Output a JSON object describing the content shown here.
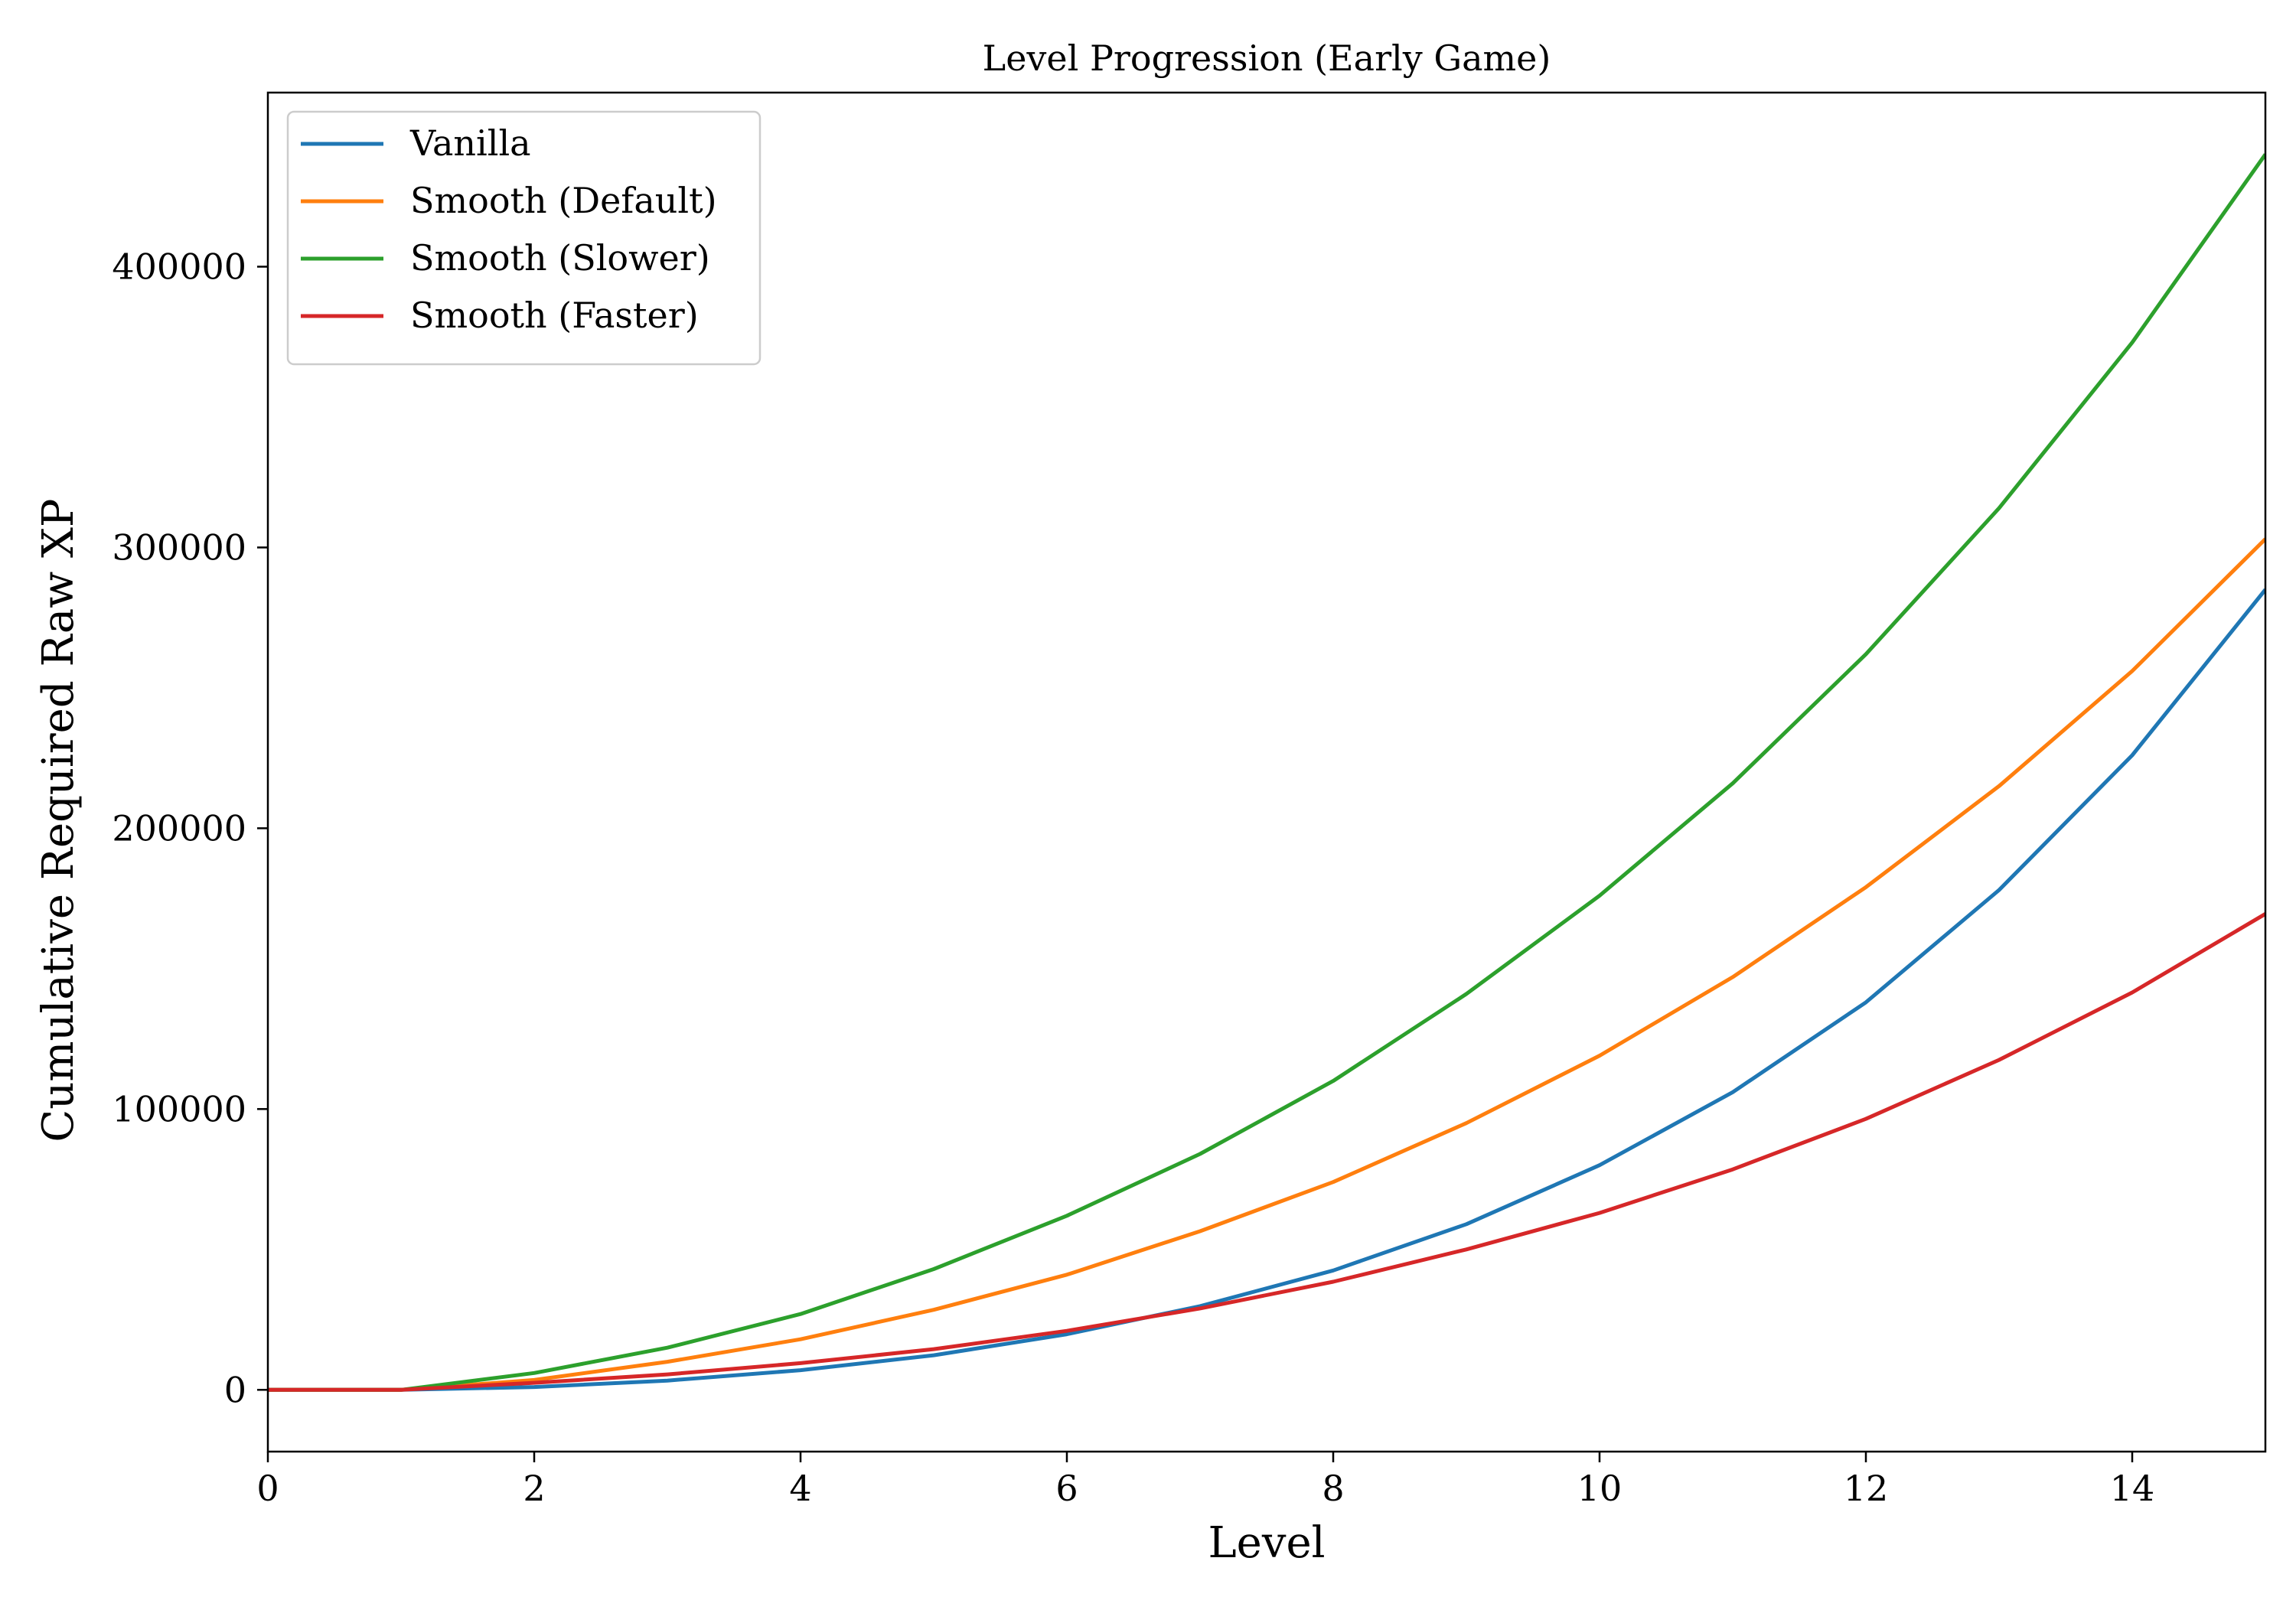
{
  "chart_data": {
    "type": "line",
    "title": "Level Progression (Early Game)",
    "xlabel": "Level",
    "ylabel": "Cumulative Required Raw XP",
    "xlim": [
      0,
      15
    ],
    "ylim": [
      -22000,
      462000
    ],
    "xticks": [
      0,
      2,
      4,
      6,
      8,
      10,
      12,
      14
    ],
    "yticks": [
      0,
      100000,
      200000,
      300000,
      400000
    ],
    "grid": false,
    "legend_position": "top-left",
    "x": [
      0,
      1,
      2,
      3,
      4,
      5,
      6,
      7,
      8,
      9,
      10,
      11,
      12,
      13,
      14,
      15
    ],
    "series": [
      {
        "name": "Vanilla",
        "color": "#1f77b4",
        "values": [
          0,
          0,
          1000,
          3300,
          7000,
          12300,
          19800,
          29800,
          42500,
          59000,
          80000,
          106000,
          138000,
          178000,
          226000,
          285000
        ]
      },
      {
        "name": "Smooth (Default)",
        "color": "#ff7f0e",
        "values": [
          0,
          0,
          3500,
          10000,
          18000,
          28500,
          41000,
          56500,
          74000,
          95000,
          119000,
          147000,
          179000,
          215000,
          256000,
          303000
        ]
      },
      {
        "name": "Smooth (Slower)",
        "color": "#2ca02c",
        "values": [
          0,
          0,
          6000,
          15000,
          27000,
          43000,
          62000,
          84000,
          110000,
          141000,
          176000,
          216000,
          262000,
          314000,
          373000,
          440000
        ]
      },
      {
        "name": "Smooth (Faster)",
        "color": "#d62728",
        "values": [
          0,
          0,
          2500,
          5500,
          9500,
          14500,
          21000,
          29000,
          38500,
          50000,
          63000,
          78500,
          96500,
          117500,
          141500,
          169500
        ]
      }
    ]
  }
}
